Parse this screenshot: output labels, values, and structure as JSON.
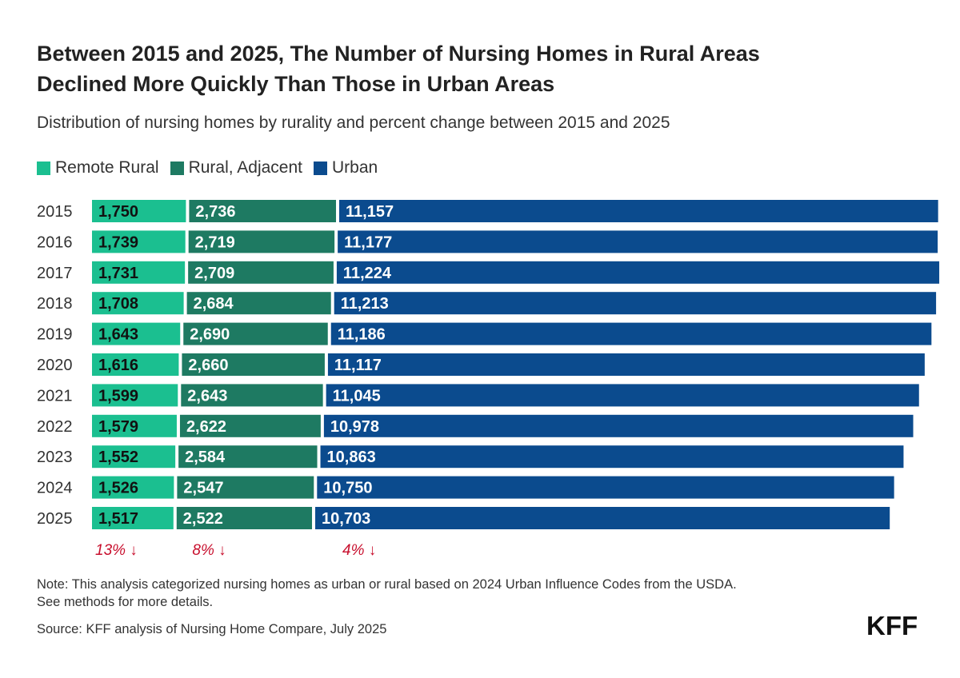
{
  "header": {
    "title_line1": "Between 2015 and 2025, The Number of Nursing Homes in Rural Areas",
    "title_line2": "Declined More Quickly Than Those in Urban Areas",
    "subtitle": "Distribution of nursing homes by rurality and percent change between 2015 and 2025"
  },
  "colors": {
    "remote_rural": "#1bbf90",
    "rural_adjacent": "#1e7a62",
    "urban": "#0b4b8e",
    "decline": "#c8102e"
  },
  "chart_data": {
    "type": "bar",
    "orientation": "horizontal",
    "stacked": true,
    "categories": [
      "2015",
      "2016",
      "2017",
      "2018",
      "2019",
      "2020",
      "2021",
      "2022",
      "2023",
      "2024",
      "2025"
    ],
    "series": [
      {
        "name": "Remote Rural",
        "values": [
          1750,
          1739,
          1731,
          1708,
          1643,
          1616,
          1599,
          1579,
          1552,
          1526,
          1517
        ],
        "labels": [
          "1,750",
          "1,739",
          "1,731",
          "1,708",
          "1,643",
          "1,616",
          "1,599",
          "1,579",
          "1,552",
          "1,526",
          "1,517"
        ]
      },
      {
        "name": "Rural, Adjacent",
        "values": [
          2736,
          2719,
          2709,
          2684,
          2690,
          2660,
          2643,
          2622,
          2584,
          2547,
          2522
        ],
        "labels": [
          "2,736",
          "2,719",
          "2,709",
          "2,684",
          "2,690",
          "2,660",
          "2,643",
          "2,622",
          "2,584",
          "2,547",
          "2,522"
        ]
      },
      {
        "name": "Urban",
        "values": [
          11157,
          11177,
          11224,
          11213,
          11186,
          11117,
          11045,
          10978,
          10863,
          10750,
          10703
        ],
        "labels": [
          "11,157",
          "11,177",
          "11,224",
          "11,213",
          "11,186",
          "11,117",
          "11,045",
          "10,978",
          "10,863",
          "10,750",
          "10,703"
        ]
      }
    ],
    "changes": [
      "13% ↓",
      "8% ↓",
      "4% ↓"
    ],
    "legend_placement": "top-left",
    "grid": false
  },
  "footer": {
    "note_line1": "Note: This analysis categorized nursing homes as urban or rural based on 2024 Urban Influence Codes from the USDA.",
    "note_line2": "See methods for more details.",
    "source": "Source: KFF analysis of Nursing Home Compare, July 2025",
    "logo": "KFF"
  }
}
